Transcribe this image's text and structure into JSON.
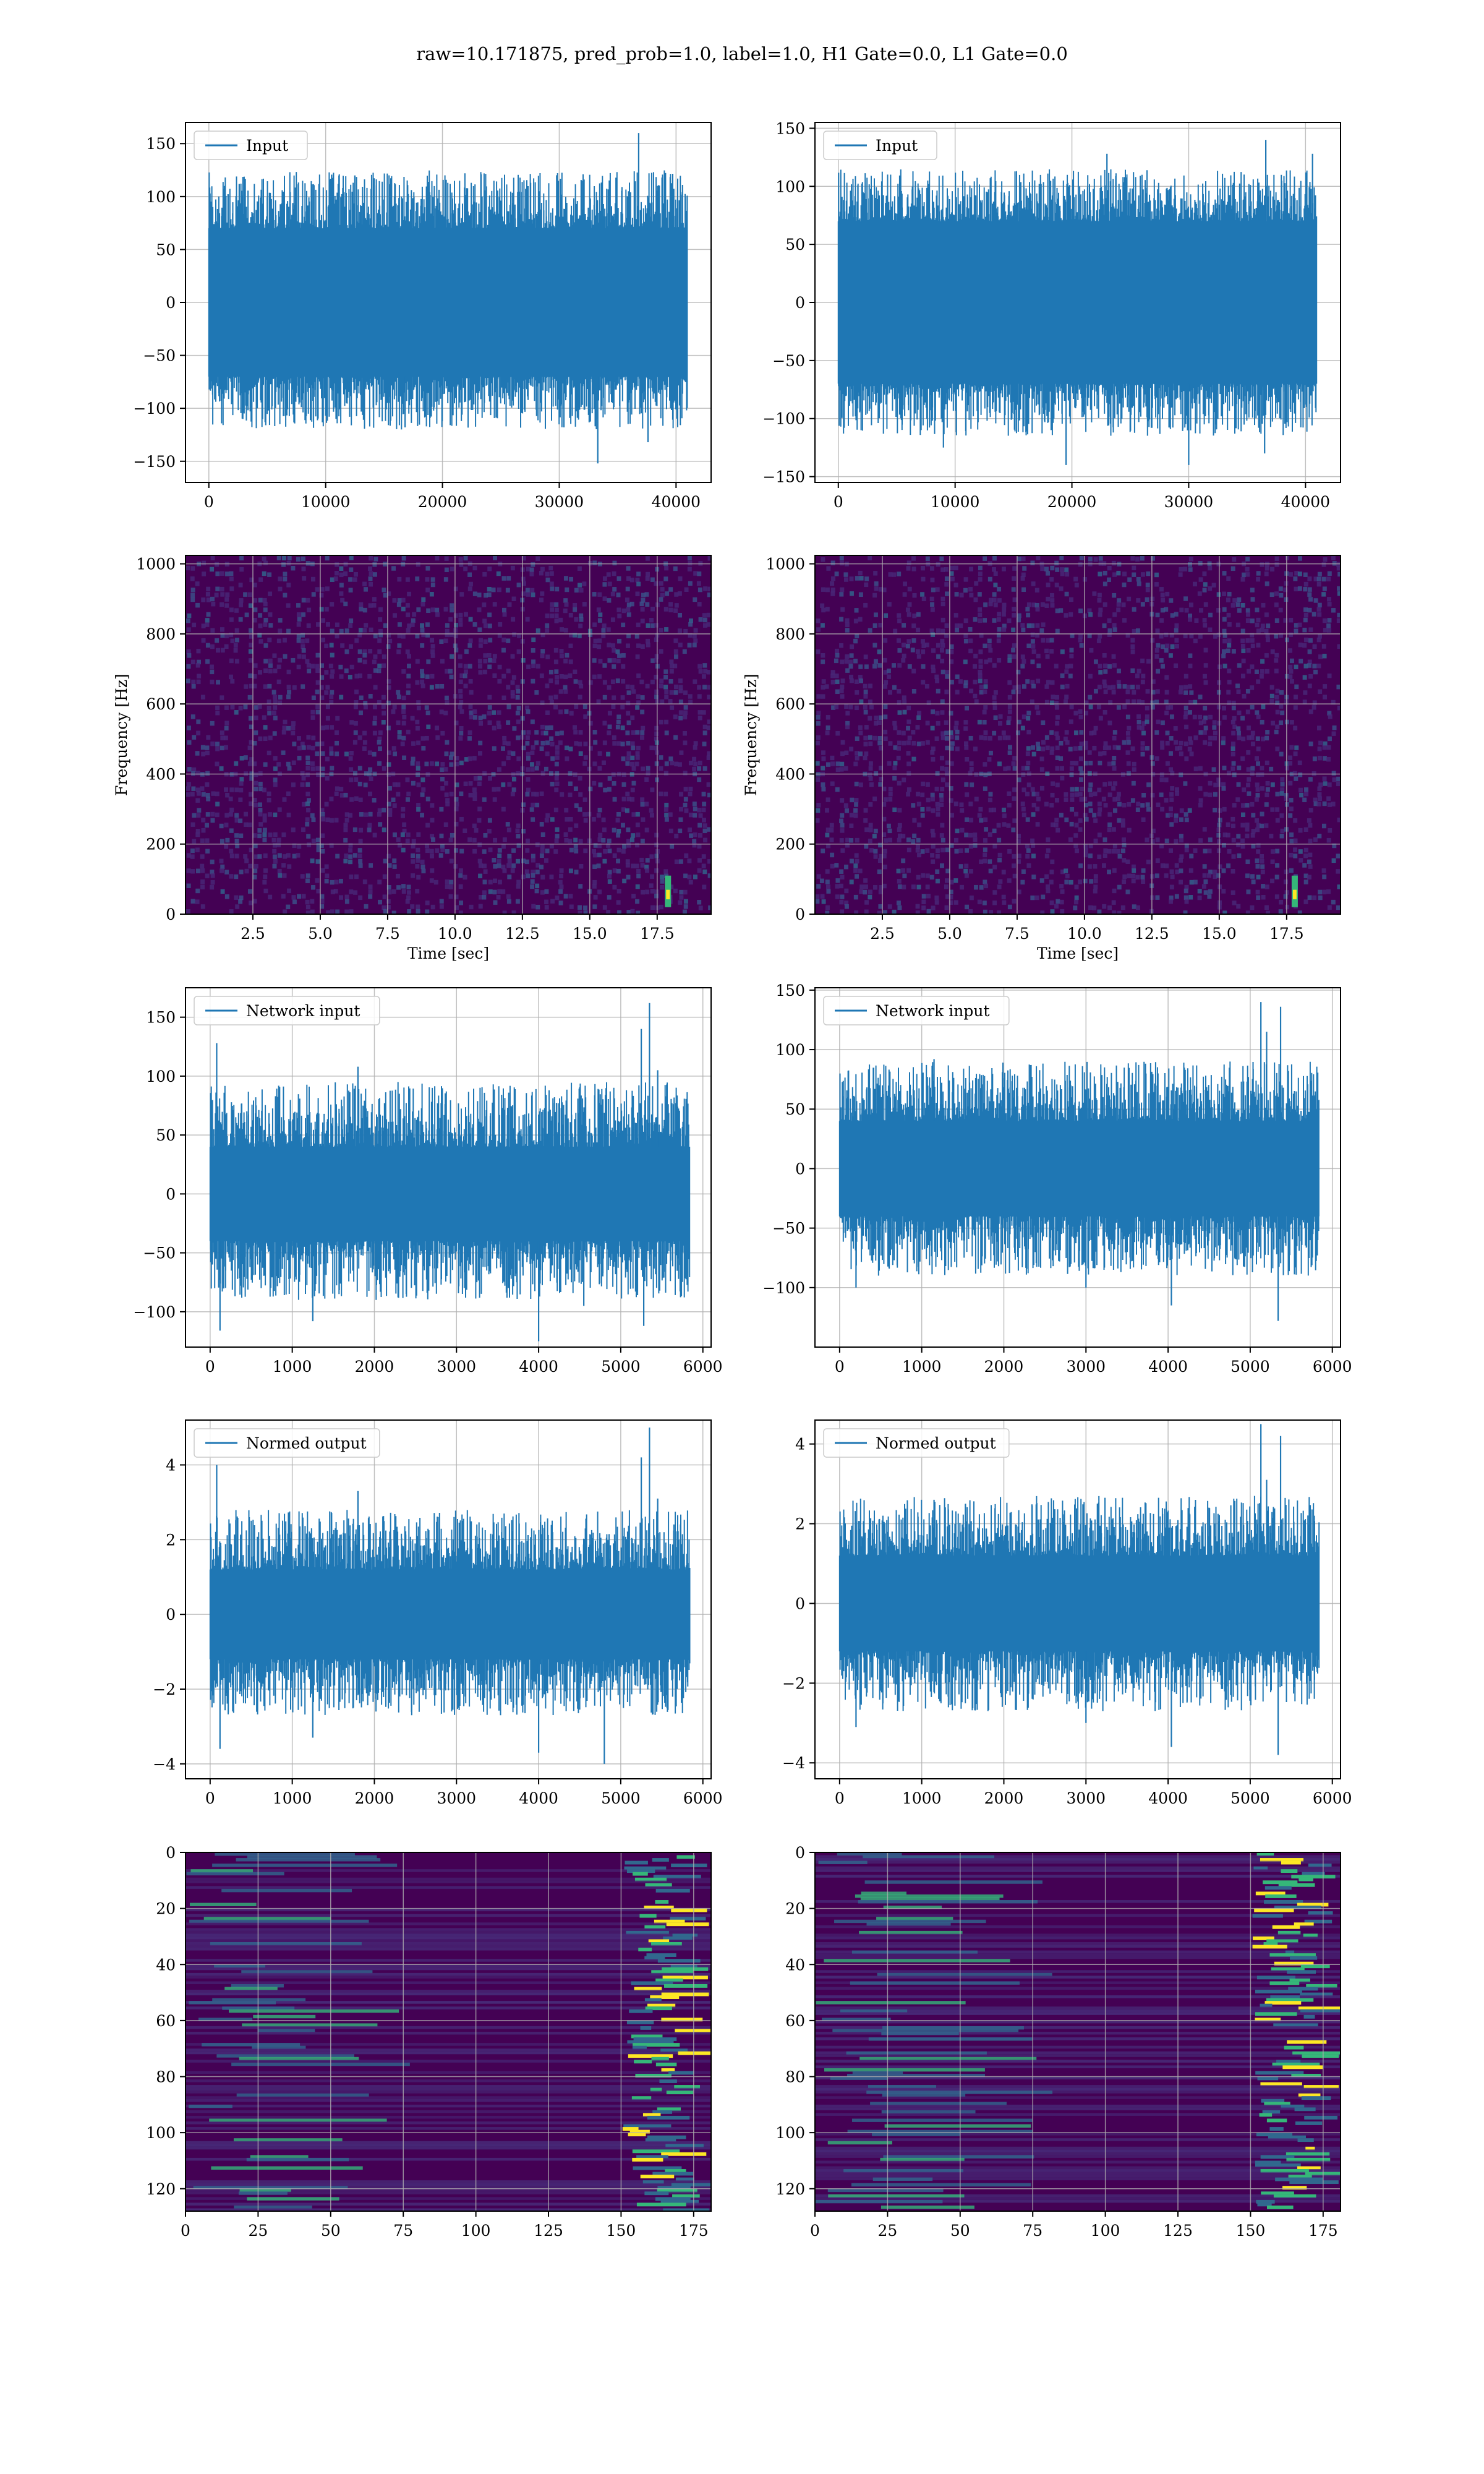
{
  "figure": {
    "title": "raw=10.171875, pred_prob=1.0, label=1.0, H1 Gate=0.0, L1 Gate=0.0"
  },
  "colors": {
    "series": "#1f77b4",
    "grid": "#b0b0b0",
    "spectro_low": "#440154",
    "spectro_mid": "#31688e",
    "spectro_high": "#35b779",
    "spectro_peak": "#fde725"
  },
  "chart_data": [
    {
      "id": "input-h1",
      "type": "line",
      "legend": "Input",
      "legend_position": "upper-left",
      "grid": true,
      "xlim": [
        -2000,
        43000
      ],
      "ylim": [
        -170,
        170
      ],
      "xticks": [
        0,
        10000,
        20000,
        30000,
        40000
      ],
      "xtick_labels": [
        "0",
        "10000",
        "20000",
        "30000",
        "40000"
      ],
      "yticks": [
        -150,
        -100,
        -50,
        0,
        50,
        100,
        150
      ],
      "ytick_labels": [
        "−150",
        "−100",
        "−50",
        "0",
        "50",
        "100",
        "150"
      ],
      "x_range": [
        0,
        40960
      ],
      "band": [
        -70,
        70
      ],
      "noise_extent": [
        -120,
        125
      ],
      "spikes": [
        [
          36800,
          160
        ],
        [
          33300,
          -152
        ],
        [
          37600,
          -132
        ],
        [
          38800,
          118
        ],
        [
          16800,
          -118
        ],
        [
          12500,
          120
        ],
        [
          30400,
          -118
        ],
        [
          2600,
          112
        ]
      ]
    },
    {
      "id": "input-l1",
      "type": "line",
      "legend": "Input",
      "legend_position": "upper-left",
      "grid": true,
      "xlim": [
        -2000,
        43000
      ],
      "ylim": [
        -155,
        155
      ],
      "xticks": [
        0,
        10000,
        20000,
        30000,
        40000
      ],
      "xtick_labels": [
        "0",
        "10000",
        "20000",
        "30000",
        "40000"
      ],
      "yticks": [
        -150,
        -100,
        -50,
        0,
        50,
        100,
        150
      ],
      "ytick_labels": [
        "−150",
        "−100",
        "−50",
        "0",
        "50",
        "100",
        "150"
      ],
      "x_range": [
        0,
        40960
      ],
      "band": [
        -70,
        70
      ],
      "noise_extent": [
        -115,
        115
      ],
      "spikes": [
        [
          36600,
          140
        ],
        [
          19500,
          -140
        ],
        [
          30000,
          -140
        ],
        [
          23000,
          128
        ],
        [
          40600,
          128
        ],
        [
          9000,
          -125
        ],
        [
          36500,
          -130
        ],
        [
          500,
          -108
        ]
      ]
    },
    {
      "id": "spectrogram-h1",
      "type": "heatmap",
      "grid": true,
      "xlabel": "Time [sec]",
      "ylabel": "Frequency [Hz]",
      "xlim": [
        0,
        19.5
      ],
      "ylim": [
        0,
        1024
      ],
      "xticks": [
        2.5,
        5.0,
        7.5,
        10.0,
        12.5,
        15.0,
        17.5
      ],
      "xtick_labels": [
        "2.5",
        "5.0",
        "7.5",
        "10.0",
        "12.5",
        "15.0",
        "17.5"
      ],
      "yticks": [
        0,
        200,
        400,
        600,
        800,
        1000
      ],
      "ytick_labels": [
        "0",
        "200",
        "400",
        "600",
        "800",
        "1000"
      ],
      "chirp": {
        "time": 17.9,
        "freq_range": [
          20,
          110
        ]
      }
    },
    {
      "id": "spectrogram-l1",
      "type": "heatmap",
      "grid": true,
      "xlabel": "Time [sec]",
      "ylabel": "Frequency [Hz]",
      "xlim": [
        0,
        19.5
      ],
      "ylim": [
        0,
        1024
      ],
      "xticks": [
        2.5,
        5.0,
        7.5,
        10.0,
        12.5,
        15.0,
        17.5
      ],
      "xtick_labels": [
        "2.5",
        "5.0",
        "7.5",
        "10.0",
        "12.5",
        "15.0",
        "17.5"
      ],
      "yticks": [
        0,
        200,
        400,
        600,
        800,
        1000
      ],
      "ytick_labels": [
        "0",
        "200",
        "400",
        "600",
        "800",
        "1000"
      ],
      "chirp": {
        "time": 17.8,
        "freq_range": [
          20,
          110
        ]
      }
    },
    {
      "id": "network-input-h1",
      "type": "line",
      "legend": "Network input",
      "legend_position": "upper-left",
      "grid": true,
      "xlim": [
        -300,
        6100
      ],
      "ylim": [
        -130,
        175
      ],
      "xticks": [
        0,
        1000,
        2000,
        3000,
        4000,
        5000,
        6000
      ],
      "xtick_labels": [
        "0",
        "1000",
        "2000",
        "3000",
        "4000",
        "5000",
        "6000"
      ],
      "yticks": [
        -100,
        -50,
        0,
        50,
        100,
        150
      ],
      "ytick_labels": [
        "−100",
        "−50",
        "0",
        "50",
        "100",
        "150"
      ],
      "x_range": [
        0,
        5840
      ],
      "band": [
        -40,
        40
      ],
      "noise_extent": [
        -90,
        95
      ],
      "spikes": [
        [
          5350,
          162
        ],
        [
          5250,
          140
        ],
        [
          4000,
          -125
        ],
        [
          5280,
          -112
        ],
        [
          80,
          128
        ],
        [
          120,
          -116
        ],
        [
          1250,
          -108
        ],
        [
          4550,
          -95
        ],
        [
          1800,
          108
        ],
        [
          5450,
          105
        ]
      ]
    },
    {
      "id": "network-input-l1",
      "type": "line",
      "legend": "Network input",
      "legend_position": "upper-left",
      "grid": true,
      "xlim": [
        -300,
        6100
      ],
      "ylim": [
        -150,
        152
      ],
      "xticks": [
        0,
        1000,
        2000,
        3000,
        4000,
        5000,
        6000
      ],
      "xtick_labels": [
        "0",
        "1000",
        "2000",
        "3000",
        "4000",
        "5000",
        "6000"
      ],
      "yticks": [
        -100,
        -50,
        0,
        50,
        100,
        150
      ],
      "ytick_labels": [
        "−100",
        "−50",
        "0",
        "50",
        "100",
        "150"
      ],
      "x_range": [
        0,
        5840
      ],
      "band": [
        -40,
        40
      ],
      "noise_extent": [
        -90,
        90
      ],
      "spikes": [
        [
          5130,
          140
        ],
        [
          5370,
          136
        ],
        [
          5340,
          -128
        ],
        [
          4040,
          -115
        ],
        [
          5200,
          115
        ],
        [
          3000,
          -100
        ],
        [
          1150,
          92
        ],
        [
          200,
          -100
        ]
      ]
    },
    {
      "id": "normed-output-h1",
      "type": "line",
      "legend": "Normed output",
      "legend_position": "upper-left",
      "grid": true,
      "xlim": [
        -300,
        6100
      ],
      "ylim": [
        -4.4,
        5.2
      ],
      "xticks": [
        0,
        1000,
        2000,
        3000,
        4000,
        5000,
        6000
      ],
      "xtick_labels": [
        "0",
        "1000",
        "2000",
        "3000",
        "4000",
        "5000",
        "6000"
      ],
      "yticks": [
        -4,
        -2,
        0,
        2,
        4
      ],
      "ytick_labels": [
        "−4",
        "−2",
        "0",
        "2",
        "4"
      ],
      "x_range": [
        0,
        5840
      ],
      "band": [
        -1.2,
        1.2
      ],
      "noise_extent": [
        -2.7,
        2.8
      ],
      "spikes": [
        [
          5350,
          5.0
        ],
        [
          5250,
          4.2
        ],
        [
          80,
          4.0
        ],
        [
          120,
          -3.6
        ],
        [
          4000,
          -3.7
        ],
        [
          4800,
          -4.0
        ],
        [
          1250,
          -3.3
        ],
        [
          1800,
          3.3
        ],
        [
          5450,
          3.1
        ]
      ]
    },
    {
      "id": "normed-output-l1",
      "type": "line",
      "legend": "Normed output",
      "legend_position": "upper-left",
      "grid": true,
      "xlim": [
        -300,
        6100
      ],
      "ylim": [
        -4.4,
        4.6
      ],
      "xticks": [
        0,
        1000,
        2000,
        3000,
        4000,
        5000,
        6000
      ],
      "xtick_labels": [
        "0",
        "1000",
        "2000",
        "3000",
        "4000",
        "5000",
        "6000"
      ],
      "yticks": [
        -4,
        -2,
        0,
        2,
        4
      ],
      "ytick_labels": [
        "−4",
        "−2",
        "0",
        "2",
        "4"
      ],
      "x_range": [
        0,
        5840
      ],
      "band": [
        -1.2,
        1.2
      ],
      "noise_extent": [
        -2.7,
        2.7
      ],
      "spikes": [
        [
          5130,
          4.5
        ],
        [
          5370,
          4.2
        ],
        [
          5340,
          -3.8
        ],
        [
          4040,
          -3.6
        ],
        [
          200,
          -3.1
        ],
        [
          5200,
          3.1
        ],
        [
          3000,
          -3.0
        ],
        [
          1150,
          2.6
        ]
      ]
    },
    {
      "id": "feature-map-h1",
      "type": "heatmap",
      "grid": true,
      "xlim": [
        0,
        181
      ],
      "ylim": [
        128,
        0
      ],
      "xticks": [
        0,
        25,
        50,
        75,
        100,
        125,
        150,
        175
      ],
      "xtick_labels": [
        "0",
        "25",
        "50",
        "75",
        "100",
        "125",
        "150",
        "175"
      ],
      "yticks": [
        0,
        20,
        40,
        60,
        80,
        100,
        120
      ],
      "ytick_labels": [
        "0",
        "20",
        "40",
        "60",
        "80",
        "100",
        "120"
      ],
      "rows": 128,
      "cols": 181,
      "hot_region_start": 150
    },
    {
      "id": "feature-map-l1",
      "type": "heatmap",
      "grid": true,
      "xlim": [
        0,
        181
      ],
      "ylim": [
        128,
        0
      ],
      "xticks": [
        0,
        25,
        50,
        75,
        100,
        125,
        150,
        175
      ],
      "xtick_labels": [
        "0",
        "25",
        "50",
        "75",
        "100",
        "125",
        "150",
        "175"
      ],
      "yticks": [
        0,
        20,
        40,
        60,
        80,
        100,
        120
      ],
      "ytick_labels": [
        "0",
        "20",
        "40",
        "60",
        "80",
        "100",
        "120"
      ],
      "rows": 128,
      "cols": 181,
      "hot_region_start": 150
    }
  ]
}
